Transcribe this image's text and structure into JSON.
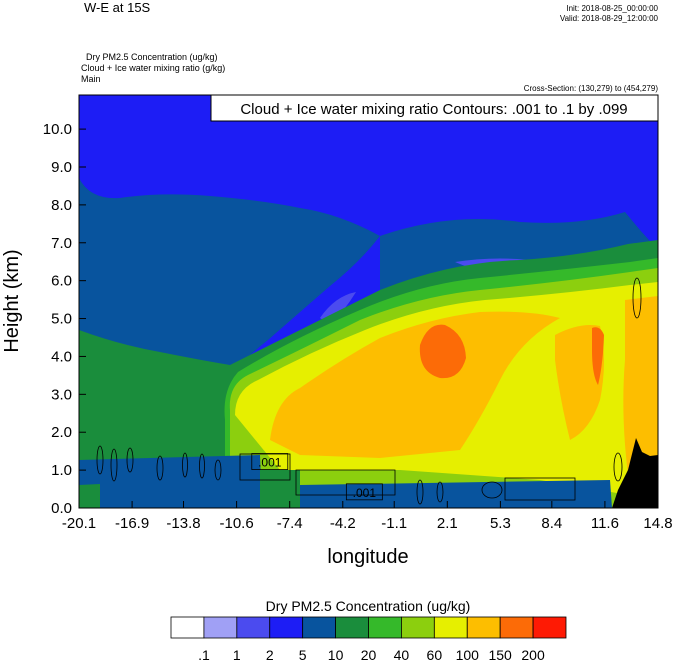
{
  "header": {
    "title": "W-E at 15S",
    "init": "Init: 2018-08-25_00:00:00",
    "valid": "Valid: 2018-08-29_12:00:00",
    "field1": "Dry PM2.5 Concentration   (ug/kg)",
    "field2": "Cloud + Ice water mixing ratio   (g/kg)",
    "field3": "Main",
    "cross_section": "Cross-Section: (130,279) to (454,279)",
    "contour_info": "Cloud + Ice water mixing ratio Contours: .001 to .1 by .099"
  },
  "chart_data": {
    "type": "heatmap",
    "xlabel": "longitude",
    "ylabel": "Height (km)",
    "xlim": [
      -20.1,
      14.8
    ],
    "ylim": [
      0.0,
      10.9
    ],
    "x_ticks": [
      "-20.1",
      "-16.9",
      "-13.8",
      "-10.6",
      "-7.4",
      "-4.2",
      "-1.1",
      "2.1",
      "5.3",
      "8.4",
      "11.6",
      "14.8"
    ],
    "y_ticks": [
      "0.0",
      "1.0",
      "2.0",
      "3.0",
      "4.0",
      "5.0",
      "6.0",
      "7.0",
      "8.0",
      "9.0",
      "10.0"
    ],
    "contour_labels": [
      {
        "text": ".001",
        "lon": -8.6,
        "height": 1.2
      },
      {
        "text": ".001",
        "lon": -2.9,
        "height": 0.4
      }
    ],
    "colorbar": {
      "title": "Dry PM2.5 Concentration  (ug/kg)",
      "labels": [
        ".1",
        "1",
        "2",
        "5",
        "10",
        "20",
        "40",
        "60",
        "100",
        "150",
        "200"
      ],
      "colors": [
        "#ffffff",
        "#a0a0f5",
        "#4b4bef",
        "#1d1df5",
        "#08549e",
        "#1a8d3c",
        "#35b92a",
        "#8ccf0e",
        "#e6ef00",
        "#fdbe00",
        "#fc6b07",
        "#fe1a04"
      ]
    }
  }
}
